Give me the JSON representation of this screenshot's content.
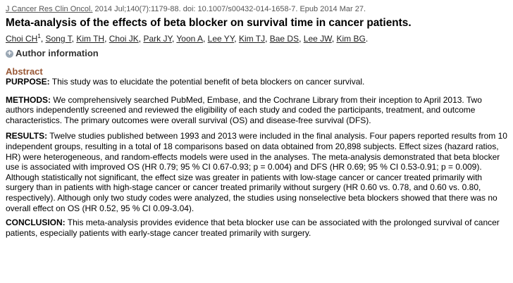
{
  "citation": {
    "journal": "J Cancer Res Clin Oncol.",
    "details": " 2014 Jul;140(7):1179-88. doi: 10.1007/s00432-014-1658-7. Epub 2014 Mar 27."
  },
  "title": "Meta-analysis of the effects of beta blocker on survival time in cancer patients.",
  "authors": [
    "Choi CH",
    "Song T",
    "Kim TH",
    "Choi JK",
    "Park JY",
    "Yoon A",
    "Lee YY",
    "Kim TJ",
    "Bae DS",
    "Lee JW",
    "Kim BG"
  ],
  "first_author_sup": "1",
  "author_info": {
    "icon": "plus-icon",
    "label": "Author information"
  },
  "abstract": {
    "heading": "Abstract",
    "purpose": {
      "label": "PURPOSE:",
      "text": " This study was to elucidate the potential benefit of beta blockers on cancer survival."
    },
    "methods": {
      "label": "METHODS:",
      "text": " We comprehensively searched PubMed, Embase, and the Cochrane Library from their inception to April 2013. Two authors independently screened and reviewed the eligibility of each study and coded the participants, treatment, and outcome characteristics. The primary outcomes were overall survival (OS) and disease-free survival (DFS)."
    },
    "results": {
      "label": "RESULTS:",
      "text": " Twelve studies published between 1993 and 2013 were included in the final analysis. Four papers reported results from 10 independent groups, resulting in a total of 18 comparisons based on data obtained from 20,898 subjects. Effect sizes (hazard ratios, HR) were heterogeneous, and random-effects models were used in the analyses. The meta-analysis demonstrated that beta blocker use is associated with improved OS (HR 0.79; 95 % CI 0.67-0.93; p = 0.004) and DFS (HR 0.69; 95 % CI 0.53-0.91; p = 0.009). Although statistically not significant, the effect size was greater in patients with low-stage cancer or cancer treated primarily with surgery than in patients with high-stage cancer or cancer treated primarily without surgery (HR 0.60 vs. 0.78, and 0.60 vs. 0.80, respectively). Although only two study codes were analyzed, the studies using nonselective beta blockers showed that there was no overall effect on OS (HR 0.52, 95 % CI 0.09-3.04)."
    },
    "conclusion": {
      "label": "CONCLUSION:",
      "text": " This meta-analysis provides evidence that beta blocker use can be associated with the prolonged survival of cancer patients, especially patients with early-stage cancer treated primarily with surgery."
    }
  },
  "colors": {
    "abstract_heading": "#985735",
    "citation_text": "#555555"
  }
}
